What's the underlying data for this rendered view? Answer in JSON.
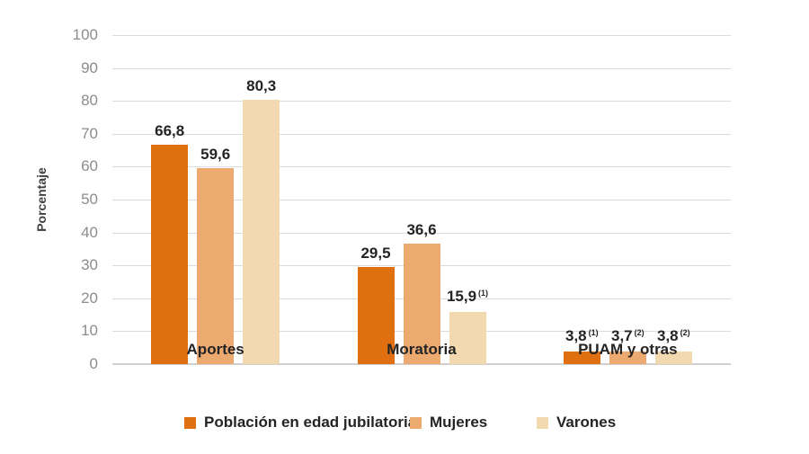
{
  "chart_data": {
    "type": "bar",
    "title": "",
    "xlabel": "",
    "ylabel": "Porcentaje",
    "ylim": [
      0,
      100
    ],
    "yticks": [
      0,
      10,
      20,
      30,
      40,
      50,
      60,
      70,
      80,
      90,
      100
    ],
    "grid": true,
    "legend_position": "bottom",
    "categories": [
      "Aportes",
      "Moratoria",
      "PUAM y otras"
    ],
    "series": [
      {
        "name": "Población en edad jubilatoria",
        "color": "#e06f12",
        "values": [
          66.8,
          29.5,
          3.8
        ],
        "value_labels": [
          "66,8",
          "29,5",
          "3,8"
        ],
        "footnotes": [
          "",
          "",
          "(1)"
        ]
      },
      {
        "name": "Mujeres",
        "color": "#ecaa70",
        "values": [
          59.6,
          36.6,
          3.7
        ],
        "value_labels": [
          "59,6",
          "36,6",
          "3,7"
        ],
        "footnotes": [
          "",
          "",
          "(2)"
        ]
      },
      {
        "name": "Varones",
        "color": "#f3d9b0",
        "values": [
          80.3,
          15.9,
          3.8
        ],
        "value_labels": [
          "80,3",
          "15,9",
          "3,8"
        ],
        "footnotes": [
          "",
          "(1)",
          "(2)"
        ]
      }
    ]
  },
  "colors": {
    "gridline": "#dbdbdb",
    "baseline": "#cfcfcf",
    "tick_label": "#8c8c8c",
    "text": "#242424"
  }
}
